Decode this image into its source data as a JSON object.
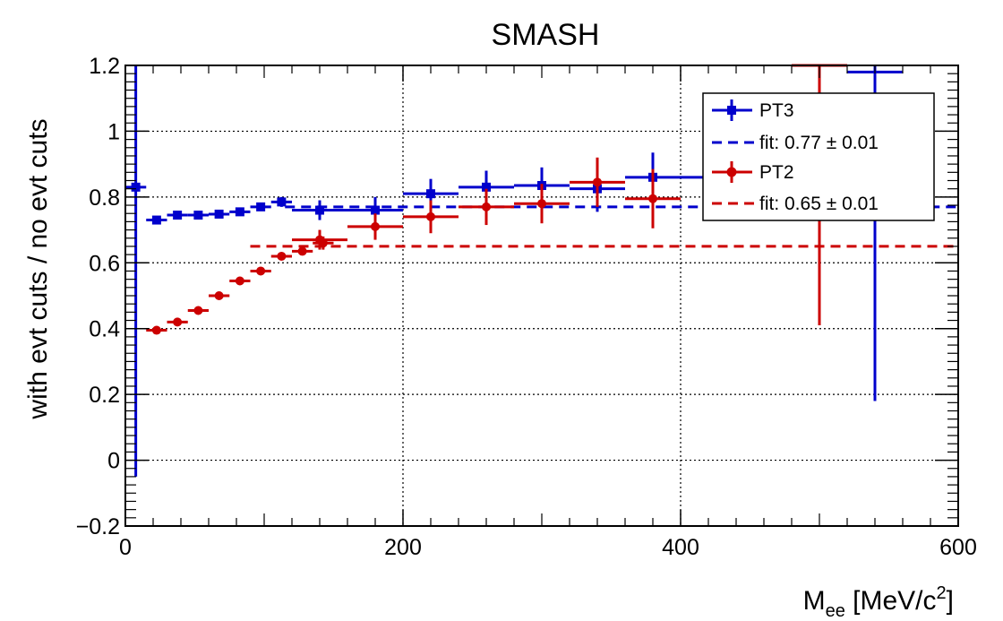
{
  "chart_data": {
    "type": "scatter",
    "title": "SMASH",
    "xlabel": {
      "main": "M",
      "sub": "ee",
      "unit_pre": " [MeV/c",
      "sup": "2",
      "unit_post": "]"
    },
    "ylabel": "with evt cuts / no evt cuts",
    "xlim": [
      0,
      600
    ],
    "ylim": [
      -0.2,
      1.2
    ],
    "x_ticks": [
      0,
      200,
      400,
      600
    ],
    "y_ticks": [
      -0.2,
      0,
      0.2,
      0.4,
      0.6,
      0.8,
      1,
      1.2
    ],
    "x_tick_labels": [
      "0",
      "200",
      "400",
      "600"
    ],
    "y_tick_labels": [
      "−0.2",
      "0",
      "0.2",
      "0.4",
      "0.6",
      "0.8",
      "1",
      "1.2"
    ],
    "grid": true,
    "legend_position": "top-right",
    "series": [
      {
        "name": "PT3",
        "color": "#0000cc",
        "marker": "square",
        "points": [
          {
            "x": 7.5,
            "xerr": 7.5,
            "y": 0.83,
            "ylo": -0.05,
            "yhi": 1.2
          },
          {
            "x": 22.5,
            "xerr": 7.5,
            "y": 0.73,
            "yerr": 0.012
          },
          {
            "x": 37.5,
            "xerr": 7.5,
            "y": 0.745,
            "yerr": 0.01
          },
          {
            "x": 52.5,
            "xerr": 7.5,
            "y": 0.745,
            "yerr": 0.008
          },
          {
            "x": 67.5,
            "xerr": 7.5,
            "y": 0.748,
            "yerr": 0.008
          },
          {
            "x": 82.5,
            "xerr": 7.5,
            "y": 0.755,
            "yerr": 0.008
          },
          {
            "x": 97.5,
            "xerr": 7.5,
            "y": 0.77,
            "yerr": 0.01
          },
          {
            "x": 112.5,
            "xerr": 7.5,
            "y": 0.785,
            "yerr": 0.015
          },
          {
            "x": 140,
            "xerr": 20,
            "y": 0.76,
            "yerr": 0.03
          },
          {
            "x": 180,
            "xerr": 20,
            "y": 0.76,
            "yerr": 0.04
          },
          {
            "x": 220,
            "xerr": 20,
            "y": 0.81,
            "yerr": 0.045
          },
          {
            "x": 260,
            "xerr": 20,
            "y": 0.83,
            "yerr": 0.05
          },
          {
            "x": 300,
            "xerr": 20,
            "y": 0.835,
            "yerr": 0.055
          },
          {
            "x": 340,
            "xerr": 20,
            "y": 0.825,
            "yerr": 0.07
          },
          {
            "x": 380,
            "xerr": 20,
            "y": 0.86,
            "yerr": 0.075
          },
          {
            "x": 420,
            "xerr": 20,
            "y": 0.86,
            "yerr": 0.09
          },
          {
            "x": 540,
            "xerr": 20,
            "y": 1.18,
            "ylo": 0.18,
            "yhi": 1.2
          }
        ]
      },
      {
        "name": "PT2",
        "color": "#cc0000",
        "marker": "circle",
        "points": [
          {
            "x": 22.5,
            "xerr": 7.5,
            "y": 0.395,
            "yerr": 0.005
          },
          {
            "x": 37.5,
            "xerr": 7.5,
            "y": 0.42,
            "yerr": 0.005
          },
          {
            "x": 52.5,
            "xerr": 7.5,
            "y": 0.455,
            "yerr": 0.006
          },
          {
            "x": 67.5,
            "xerr": 7.5,
            "y": 0.5,
            "yerr": 0.006
          },
          {
            "x": 82.5,
            "xerr": 7.5,
            "y": 0.545,
            "yerr": 0.007
          },
          {
            "x": 97.5,
            "xerr": 7.5,
            "y": 0.575,
            "yerr": 0.008
          },
          {
            "x": 112.5,
            "xerr": 7.5,
            "y": 0.62,
            "yerr": 0.01
          },
          {
            "x": 127.5,
            "xerr": 7.5,
            "y": 0.635,
            "yerr": 0.012
          },
          {
            "x": 142.5,
            "xerr": 7.5,
            "y": 0.66,
            "yerr": 0.02
          },
          {
            "x": 140,
            "xerr": 20,
            "y": 0.67,
            "yerr": 0.03
          },
          {
            "x": 180,
            "xerr": 20,
            "y": 0.71,
            "yerr": 0.04
          },
          {
            "x": 220,
            "xerr": 20,
            "y": 0.74,
            "yerr": 0.05
          },
          {
            "x": 260,
            "xerr": 20,
            "y": 0.77,
            "yerr": 0.055
          },
          {
            "x": 300,
            "xerr": 20,
            "y": 0.78,
            "yerr": 0.06
          },
          {
            "x": 340,
            "xerr": 20,
            "y": 0.845,
            "yerr": 0.075
          },
          {
            "x": 380,
            "xerr": 20,
            "y": 0.795,
            "yerr": 0.09
          },
          {
            "x": 500,
            "xerr": 20,
            "y": 1.2,
            "ylo": 0.41,
            "yhi": 1.2
          }
        ]
      }
    ],
    "fits": [
      {
        "label": "fit: 0.77 ± 0.01",
        "value": 0.77,
        "x_start": 115,
        "x_end": 600,
        "color": "#0000cc"
      },
      {
        "label": "fit: 0.65 ± 0.01",
        "value": 0.65,
        "x_start": 90,
        "x_end": 600,
        "color": "#cc0000"
      }
    ]
  }
}
